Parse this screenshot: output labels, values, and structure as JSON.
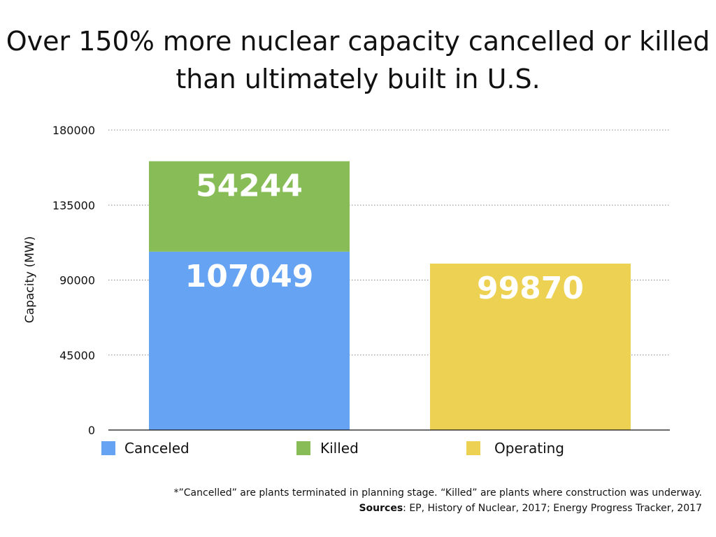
{
  "chart_data": {
    "type": "bar",
    "title": [
      "Over 150% more nuclear capacity cancelled or killed",
      "than ultimately built in U.S."
    ],
    "ylabel": "Capacity (MW)",
    "xlabel": "",
    "ylim": [
      0,
      180000
    ],
    "yticks": [
      0,
      45000,
      90000,
      135000,
      180000
    ],
    "grid": true,
    "legend_position": "bottom",
    "bars": [
      {
        "segments": [
          {
            "series": "Canceled",
            "value": 107049,
            "label": "107049"
          },
          {
            "series": "Killed",
            "value": 54244,
            "label": "54244"
          }
        ]
      },
      {
        "segments": [
          {
            "series": "Operating",
            "value": 99870,
            "label": "99870"
          }
        ]
      }
    ],
    "series": [
      {
        "name": "Canceled",
        "color": "#67a3f3"
      },
      {
        "name": "Killed",
        "color": "#88bc57"
      },
      {
        "name": "Operating",
        "color": "#edd152"
      }
    ]
  },
  "notes": {
    "footnote": "*”Cancelled” are plants terminated in planning stage. “Killed” are plants where construction was underway.",
    "sources_label": "Sources",
    "sources_text": ": EP, History of Nuclear, 2017; Energy Progress Tracker, 2017"
  }
}
